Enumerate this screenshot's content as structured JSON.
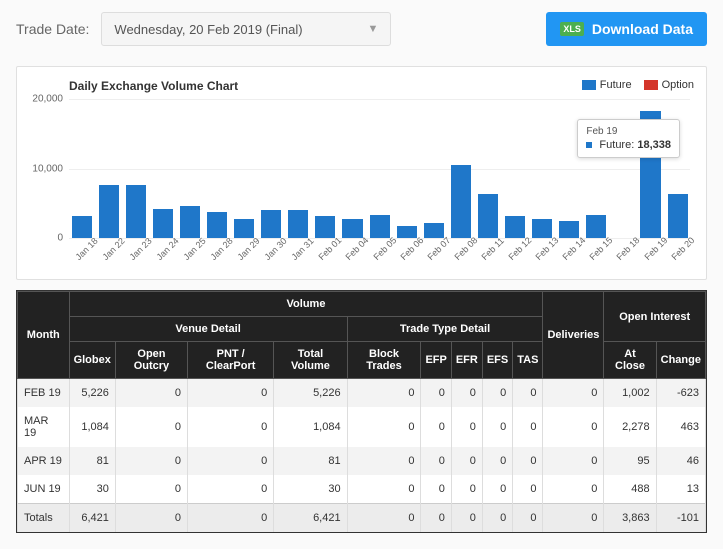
{
  "toolbar": {
    "label": "Trade Date:",
    "selected_date": "Wednesday, 20 Feb 2019 (Final)",
    "download_label": "Download Data",
    "xls_badge": "XLS"
  },
  "chart": {
    "title": "Daily Exchange Volume Chart",
    "type": "bar",
    "ymax": 20000,
    "yticks": [
      {
        "v": 0,
        "label": "0"
      },
      {
        "v": 10000,
        "label": "10,000"
      },
      {
        "v": 20000,
        "label": "20,000"
      }
    ],
    "series": [
      {
        "name": "Future",
        "color": "#1f77c9"
      },
      {
        "name": "Option",
        "color": "#d4352a"
      }
    ],
    "categories": [
      "Jan 18",
      "Jan 22",
      "Jan 23",
      "Jan 24",
      "Jan 25",
      "Jan 28",
      "Jan 29",
      "Jan 30",
      "Jan 31",
      "Feb 01",
      "Feb 04",
      "Feb 05",
      "Feb 06",
      "Feb 07",
      "Feb 08",
      "Feb 11",
      "Feb 12",
      "Feb 13",
      "Feb 14",
      "Feb 15",
      "Feb 18",
      "Feb 19",
      "Feb 20"
    ],
    "future_values": [
      3100,
      7700,
      7600,
      4200,
      4600,
      3700,
      2800,
      4000,
      4100,
      3100,
      2800,
      3300,
      1700,
      2200,
      10500,
      6300,
      3200,
      2800,
      2400,
      3300,
      0,
      18338,
      6300
    ],
    "tooltip": {
      "category": "Feb 19",
      "series": "Future",
      "value_label": "18,338",
      "dot_color": "#1f77c9"
    }
  },
  "table": {
    "group_headers": {
      "volume": "Volume",
      "venue_detail": "Venue Detail",
      "trade_type_detail": "Trade Type Detail",
      "open_interest": "Open Interest"
    },
    "columns": [
      "Month",
      "Globex",
      "Open Outcry",
      "PNT / ClearPort",
      "Total Volume",
      "Block Trades",
      "EFP",
      "EFR",
      "EFS",
      "TAS",
      "Deliveries",
      "At Close",
      "Change"
    ],
    "rows": [
      [
        "FEB 19",
        "5,226",
        "0",
        "0",
        "5,226",
        "0",
        "0",
        "0",
        "0",
        "0",
        "0",
        "1,002",
        "-623"
      ],
      [
        "MAR 19",
        "1,084",
        "0",
        "0",
        "1,084",
        "0",
        "0",
        "0",
        "0",
        "0",
        "0",
        "2,278",
        "463"
      ],
      [
        "APR 19",
        "81",
        "0",
        "0",
        "81",
        "0",
        "0",
        "0",
        "0",
        "0",
        "0",
        "95",
        "46"
      ],
      [
        "JUN 19",
        "30",
        "0",
        "0",
        "30",
        "0",
        "0",
        "0",
        "0",
        "0",
        "0",
        "488",
        "13"
      ],
      [
        "Totals",
        "6,421",
        "0",
        "0",
        "6,421",
        "0",
        "0",
        "0",
        "0",
        "0",
        "0",
        "3,863",
        "-101"
      ]
    ]
  }
}
